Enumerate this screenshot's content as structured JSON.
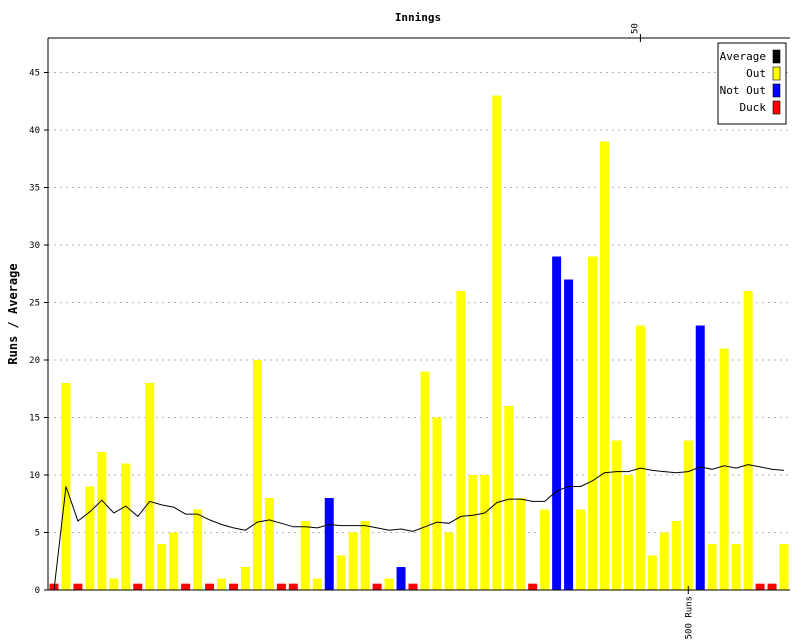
{
  "chart_data": {
    "type": "bar",
    "title": "Innings",
    "ylabel": "Runs / Average",
    "ylim": [
      0,
      48
    ],
    "yticks": [
      0,
      5,
      10,
      15,
      20,
      25,
      30,
      35,
      40,
      45
    ],
    "grid": true,
    "legend_position": "top-right",
    "legend": [
      {
        "label": "Average",
        "color": "#000000"
      },
      {
        "label": "Out",
        "color": "#ffff00"
      },
      {
        "label": "Not Out",
        "color": "#0000ff"
      },
      {
        "label": "Duck",
        "color": "#ff0000"
      }
    ],
    "top_marker": {
      "label": "50",
      "innings": 50
    },
    "bottom_marker": {
      "label": "500 Runs",
      "innings": 54
    },
    "innings": [
      {
        "runs": 0,
        "status": "duck"
      },
      {
        "runs": 18,
        "status": "out"
      },
      {
        "runs": 0,
        "status": "duck"
      },
      {
        "runs": 9,
        "status": "out"
      },
      {
        "runs": 12,
        "status": "out"
      },
      {
        "runs": 1,
        "status": "out"
      },
      {
        "runs": 11,
        "status": "out"
      },
      {
        "runs": 0,
        "status": "duck"
      },
      {
        "runs": 18,
        "status": "out"
      },
      {
        "runs": 4,
        "status": "out"
      },
      {
        "runs": 5,
        "status": "out"
      },
      {
        "runs": 0,
        "status": "duck"
      },
      {
        "runs": 7,
        "status": "out"
      },
      {
        "runs": 0,
        "status": "duck"
      },
      {
        "runs": 1,
        "status": "out"
      },
      {
        "runs": 0,
        "status": "duck"
      },
      {
        "runs": 2,
        "status": "out"
      },
      {
        "runs": 20,
        "status": "out"
      },
      {
        "runs": 8,
        "status": "out"
      },
      {
        "runs": 0,
        "status": "duck"
      },
      {
        "runs": 0,
        "status": "duck"
      },
      {
        "runs": 6,
        "status": "out"
      },
      {
        "runs": 1,
        "status": "out"
      },
      {
        "runs": 8,
        "status": "not_out"
      },
      {
        "runs": 3,
        "status": "out"
      },
      {
        "runs": 5,
        "status": "out"
      },
      {
        "runs": 6,
        "status": "out"
      },
      {
        "runs": 0,
        "status": "duck"
      },
      {
        "runs": 1,
        "status": "out"
      },
      {
        "runs": 2,
        "status": "not_out"
      },
      {
        "runs": 0,
        "status": "duck"
      },
      {
        "runs": 19,
        "status": "out"
      },
      {
        "runs": 15,
        "status": "out"
      },
      {
        "runs": 5,
        "status": "out"
      },
      {
        "runs": 26,
        "status": "out"
      },
      {
        "runs": 10,
        "status": "out"
      },
      {
        "runs": 10,
        "status": "out"
      },
      {
        "runs": 43,
        "status": "out"
      },
      {
        "runs": 16,
        "status": "out"
      },
      {
        "runs": 8,
        "status": "out"
      },
      {
        "runs": 0,
        "status": "duck"
      },
      {
        "runs": 7,
        "status": "out"
      },
      {
        "runs": 29,
        "status": "not_out"
      },
      {
        "runs": 27,
        "status": "not_out"
      },
      {
        "runs": 7,
        "status": "out"
      },
      {
        "runs": 29,
        "status": "out"
      },
      {
        "runs": 39,
        "status": "out"
      },
      {
        "runs": 13,
        "status": "out"
      },
      {
        "runs": 10,
        "status": "out"
      },
      {
        "runs": 23,
        "status": "out"
      },
      {
        "runs": 3,
        "status": "out"
      },
      {
        "runs": 5,
        "status": "out"
      },
      {
        "runs": 6,
        "status": "out"
      },
      {
        "runs": 13,
        "status": "out"
      },
      {
        "runs": 23,
        "status": "not_out"
      },
      {
        "runs": 4,
        "status": "out"
      },
      {
        "runs": 21,
        "status": "out"
      },
      {
        "runs": 4,
        "status": "out"
      },
      {
        "runs": 26,
        "status": "out"
      },
      {
        "runs": 0,
        "status": "duck"
      },
      {
        "runs": 0,
        "status": "duck"
      },
      {
        "runs": 4,
        "status": "out"
      }
    ],
    "average": [
      0,
      9,
      6,
      6.8,
      7.8,
      6.7,
      7.3,
      6.4,
      7.7,
      7.4,
      7.2,
      6.6,
      6.6,
      6.1,
      5.7,
      5.4,
      5.2,
      5.9,
      6.1,
      5.8,
      5.5,
      5.5,
      5.4,
      5.7,
      5.6,
      5.6,
      5.6,
      5.4,
      5.2,
      5.3,
      5.1,
      5.5,
      5.9,
      5.8,
      6.4,
      6.5,
      6.7,
      7.6,
      7.9,
      7.9,
      7.7,
      7.7,
      8.6,
      9.0,
      9.0,
      9.5,
      10.2,
      10.3,
      10.3,
      10.6,
      10.4,
      10.3,
      10.2,
      10.3,
      10.7,
      10.5,
      10.8,
      10.6,
      10.9,
      10.7,
      10.5,
      10.4
    ]
  }
}
